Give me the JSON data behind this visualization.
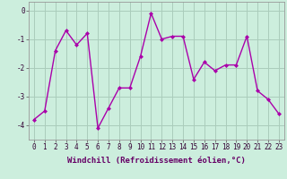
{
  "x": [
    0,
    1,
    2,
    3,
    4,
    5,
    6,
    7,
    8,
    9,
    10,
    11,
    12,
    13,
    14,
    15,
    16,
    17,
    18,
    19,
    20,
    21,
    22,
    23
  ],
  "y": [
    -3.8,
    -3.5,
    -1.4,
    -0.7,
    -1.2,
    -0.8,
    -4.1,
    -3.4,
    -2.7,
    -2.7,
    -1.6,
    -0.1,
    -1.0,
    -0.9,
    -0.9,
    -2.4,
    -1.8,
    -2.1,
    -1.9,
    -1.9,
    -0.9,
    -2.8,
    -3.1,
    -3.6
  ],
  "line_color": "#AA00AA",
  "marker": "D",
  "marker_size": 2,
  "bg_color": "#CCEEDD",
  "grid_color": "#AACCBB",
  "xlabel": "Windchill (Refroidissement éolien,°C)",
  "ylim": [
    -4.5,
    0.3
  ],
  "xlim": [
    -0.5,
    23.5
  ],
  "yticks": [
    0,
    -1,
    -2,
    -3,
    -4
  ],
  "xticks": [
    0,
    1,
    2,
    3,
    4,
    5,
    6,
    7,
    8,
    9,
    10,
    11,
    12,
    13,
    14,
    15,
    16,
    17,
    18,
    19,
    20,
    21,
    22,
    23
  ],
  "tick_fontsize": 5.5,
  "xlabel_fontsize": 6.5,
  "linewidth": 1.0
}
